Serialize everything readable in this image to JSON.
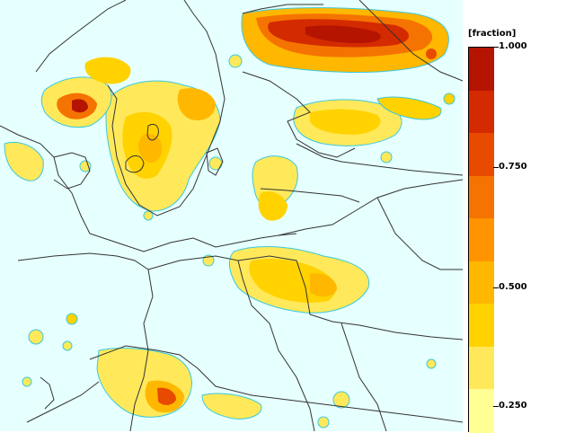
{
  "legend": {
    "unit": "[fraction]",
    "labels": [
      "1.000",
      "0.750",
      "0.500",
      "0.250"
    ],
    "colors": [
      "#b41400",
      "#d42a00",
      "#e84a00",
      "#f57300",
      "#ff9400",
      "#ffb700",
      "#ffd200",
      "#ffe95a",
      "#ffff96"
    ]
  },
  "map": {
    "sea_color": "#e6ffff",
    "land_color": "#e6ffff",
    "border_color": "#333333",
    "coast_color": "#333333"
  }
}
